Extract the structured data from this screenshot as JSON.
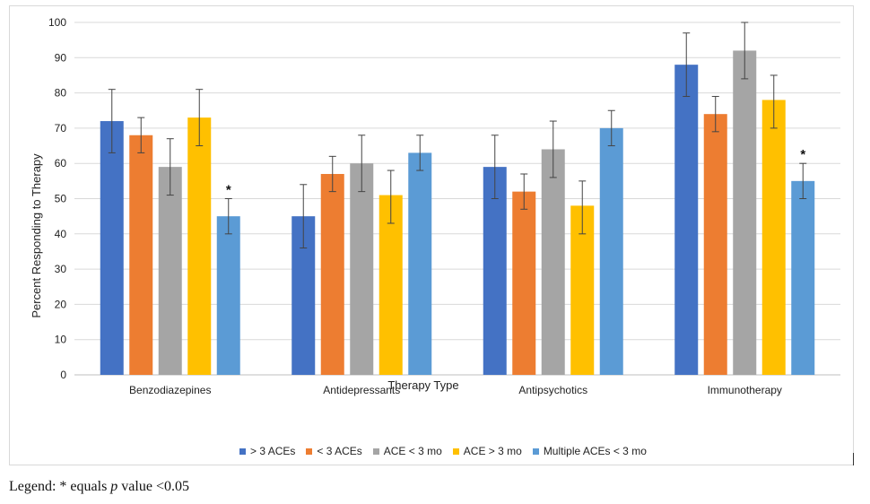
{
  "chart_data": {
    "type": "bar",
    "title": "",
    "xlabel": "Therapy Type",
    "ylabel": "Percent Responding to Therapy",
    "ylim": [
      0,
      100
    ],
    "yticks": [
      0,
      10,
      20,
      30,
      40,
      50,
      60,
      70,
      80,
      90,
      100
    ],
    "grid": true,
    "legend_position": "bottom",
    "categories": [
      "Benzodiazepines",
      "Antidepressants",
      "Antipsychotics",
      "Immunotherapy"
    ],
    "series": [
      {
        "name": "> 3 ACEs",
        "color": "#4472C4",
        "values": [
          72,
          45,
          59,
          88
        ],
        "err_low": [
          63,
          36,
          50,
          79
        ],
        "err_high": [
          81,
          54,
          68,
          97
        ],
        "sig": [
          false,
          false,
          false,
          false
        ]
      },
      {
        "name": "< 3 ACEs",
        "color": "#ED7D31",
        "values": [
          68,
          57,
          52,
          74
        ],
        "err_low": [
          63,
          52,
          47,
          69
        ],
        "err_high": [
          73,
          62,
          57,
          79
        ],
        "sig": [
          false,
          false,
          false,
          false
        ]
      },
      {
        "name": "ACE < 3 mo",
        "color": "#A5A5A5",
        "values": [
          59,
          60,
          64,
          92
        ],
        "err_low": [
          51,
          52,
          56,
          84
        ],
        "err_high": [
          67,
          68,
          72,
          100
        ],
        "sig": [
          false,
          false,
          false,
          false
        ]
      },
      {
        "name": "ACE > 3 mo",
        "color": "#FFC000",
        "values": [
          73,
          51,
          48,
          78
        ],
        "err_low": [
          65,
          43,
          40,
          70
        ],
        "err_high": [
          81,
          58,
          55,
          85
        ],
        "sig": [
          false,
          false,
          false,
          false
        ]
      },
      {
        "name": "Multiple ACEs < 3 mo",
        "color": "#5B9BD5",
        "values": [
          45,
          63,
          70,
          55
        ],
        "err_low": [
          40,
          58,
          65,
          50
        ],
        "err_high": [
          50,
          68,
          75,
          60
        ],
        "sig": [
          true,
          false,
          false,
          true
        ]
      }
    ],
    "significance_marker": "*"
  },
  "caption": {
    "prefix": "Legend: * equals ",
    "italic": "p",
    "suffix": " value <0.05"
  }
}
